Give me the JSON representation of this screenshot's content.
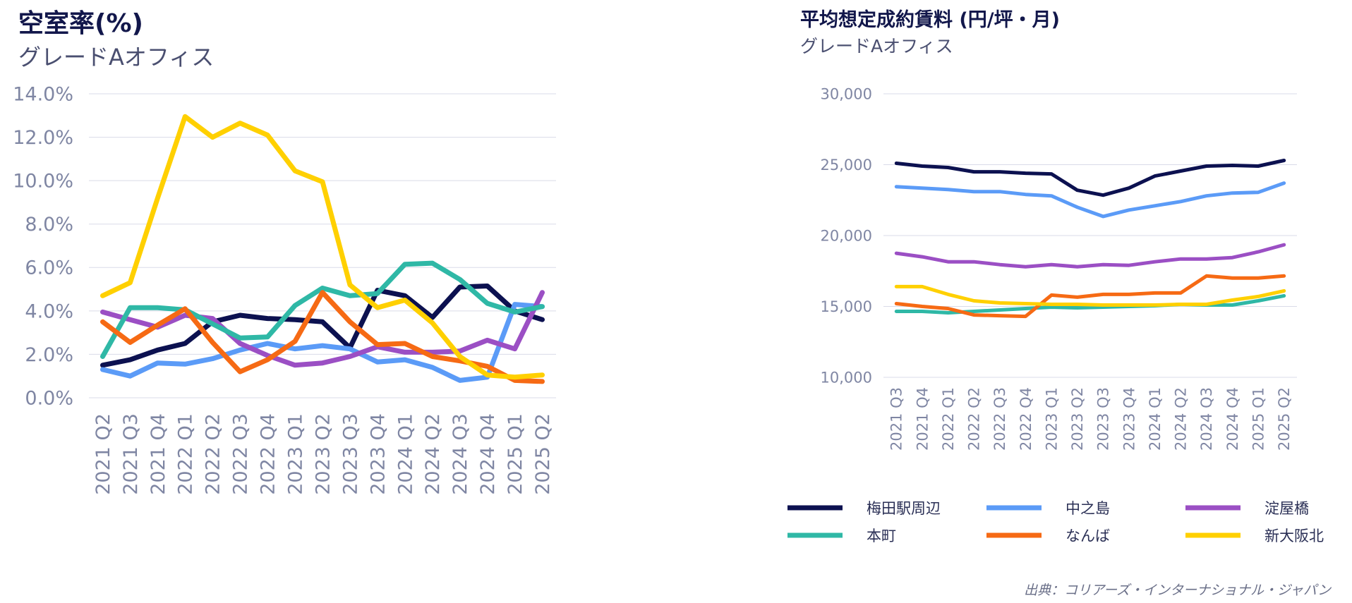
{
  "source": "出典：コリアーズ・インターナショナル・ジャパン",
  "series_meta": [
    {
      "name": "梅田駅周辺",
      "color": "#0c1150"
    },
    {
      "name": "中之島",
      "color": "#5b9bf7"
    },
    {
      "name": "淀屋橋",
      "color": "#9b4fc4"
    },
    {
      "name": "本町",
      "color": "#2fb8a6"
    },
    {
      "name": "なんば",
      "color": "#f66a14"
    },
    {
      "name": "新大阪北",
      "color": "#ffd000"
    }
  ],
  "chart_data": [
    {
      "type": "line",
      "title": "空室率(%)",
      "subtitle": "グレードAオフィス",
      "xlabel": "",
      "ylabel": "",
      "ylim": [
        0,
        14
      ],
      "yticks": [
        "0.0%",
        "2.0%",
        "4.0%",
        "6.0%",
        "8.0%",
        "10.0%",
        "12.0%",
        "14.0%"
      ],
      "categories": [
        "2021 Q2",
        "2021 Q3",
        "2021 Q4",
        "2022 Q1",
        "2022 Q2",
        "2022 Q3",
        "2022 Q4",
        "2023 Q1",
        "2023 Q2",
        "2023 Q3",
        "2023 Q4",
        "2024 Q1",
        "2024 Q2",
        "2024 Q3",
        "2024 Q4",
        "2025 Q1",
        "2025 Q2"
      ],
      "series": [
        {
          "name": "梅田駅周辺",
          "values": [
            1.5,
            1.75,
            2.2,
            2.5,
            3.5,
            3.8,
            3.65,
            3.6,
            3.5,
            2.3,
            4.95,
            4.7,
            3.7,
            5.1,
            5.15,
            4.0,
            3.6
          ]
        },
        {
          "name": "中之島",
          "values": [
            1.3,
            1.0,
            1.6,
            1.55,
            1.8,
            2.2,
            2.5,
            2.25,
            2.4,
            2.25,
            1.65,
            1.75,
            1.4,
            0.8,
            0.95,
            4.3,
            4.2
          ]
        },
        {
          "name": "淀屋橋",
          "values": [
            3.95,
            3.6,
            3.25,
            3.8,
            3.65,
            2.5,
            1.95,
            1.5,
            1.6,
            1.9,
            2.35,
            2.1,
            2.1,
            2.15,
            2.65,
            2.25,
            4.85
          ]
        },
        {
          "name": "本町",
          "values": [
            1.9,
            4.15,
            4.15,
            4.05,
            3.4,
            2.75,
            2.8,
            4.25,
            5.05,
            4.7,
            4.8,
            6.15,
            6.2,
            5.45,
            4.35,
            3.95,
            4.2
          ]
        },
        {
          "name": "なんば",
          "values": [
            3.5,
            2.55,
            3.35,
            4.1,
            2.55,
            1.2,
            1.75,
            2.6,
            4.85,
            3.5,
            2.45,
            2.5,
            1.9,
            1.7,
            1.45,
            0.8,
            0.75
          ]
        },
        {
          "name": "新大阪北",
          "values": [
            4.7,
            5.3,
            9.2,
            12.95,
            12.0,
            12.65,
            12.1,
            10.45,
            9.95,
            5.2,
            4.15,
            4.5,
            3.45,
            1.9,
            1.05,
            0.95,
            1.05
          ]
        }
      ]
    },
    {
      "type": "line",
      "title": "平均想定成約賃料 (円/坪・月)",
      "subtitle": "グレードAオフィス",
      "xlabel": "",
      "ylabel": "",
      "ylim": [
        10000,
        30000
      ],
      "yticks": [
        "10,000",
        "15,000",
        "20,000",
        "25,000",
        "30,000"
      ],
      "categories": [
        "2021 Q3",
        "2021 Q4",
        "2022 Q1",
        "2022 Q2",
        "2022 Q3",
        "2022 Q4",
        "2023 Q1",
        "2023 Q2",
        "2023 Q3",
        "2023 Q4",
        "2024 Q1",
        "2024 Q2",
        "2024 Q3",
        "2024 Q4",
        "2025 Q1",
        "2025 Q2"
      ],
      "series": [
        {
          "name": "梅田駅周辺",
          "values": [
            25100,
            24900,
            24800,
            24500,
            24500,
            24400,
            24350,
            23200,
            22850,
            23350,
            24200,
            24550,
            24900,
            24950,
            24900,
            25300
          ]
        },
        {
          "name": "中之島",
          "values": [
            23450,
            23350,
            23250,
            23100,
            23100,
            22900,
            22800,
            22000,
            21350,
            21800,
            22100,
            22400,
            22800,
            23000,
            23050,
            23700
          ]
        },
        {
          "name": "淀屋橋",
          "values": [
            18750,
            18500,
            18150,
            18150,
            17950,
            17800,
            17950,
            17800,
            17950,
            17900,
            18150,
            18350,
            18350,
            18450,
            18850,
            19350
          ]
        },
        {
          "name": "本町",
          "values": [
            14650,
            14650,
            14550,
            14650,
            14750,
            14850,
            14950,
            14900,
            14950,
            15000,
            15050,
            15150,
            15100,
            15100,
            15400,
            15750
          ]
        },
        {
          "name": "なんば",
          "values": [
            15200,
            15000,
            14850,
            14400,
            14350,
            14300,
            15800,
            15650,
            15850,
            15850,
            15950,
            15950,
            17150,
            17000,
            17000,
            17150
          ]
        },
        {
          "name": "新大阪北",
          "values": [
            16400,
            16400,
            15850,
            15400,
            15250,
            15200,
            15150,
            15150,
            15100,
            15100,
            15100,
            15150,
            15150,
            15450,
            15700,
            16100
          ]
        }
      ]
    }
  ]
}
